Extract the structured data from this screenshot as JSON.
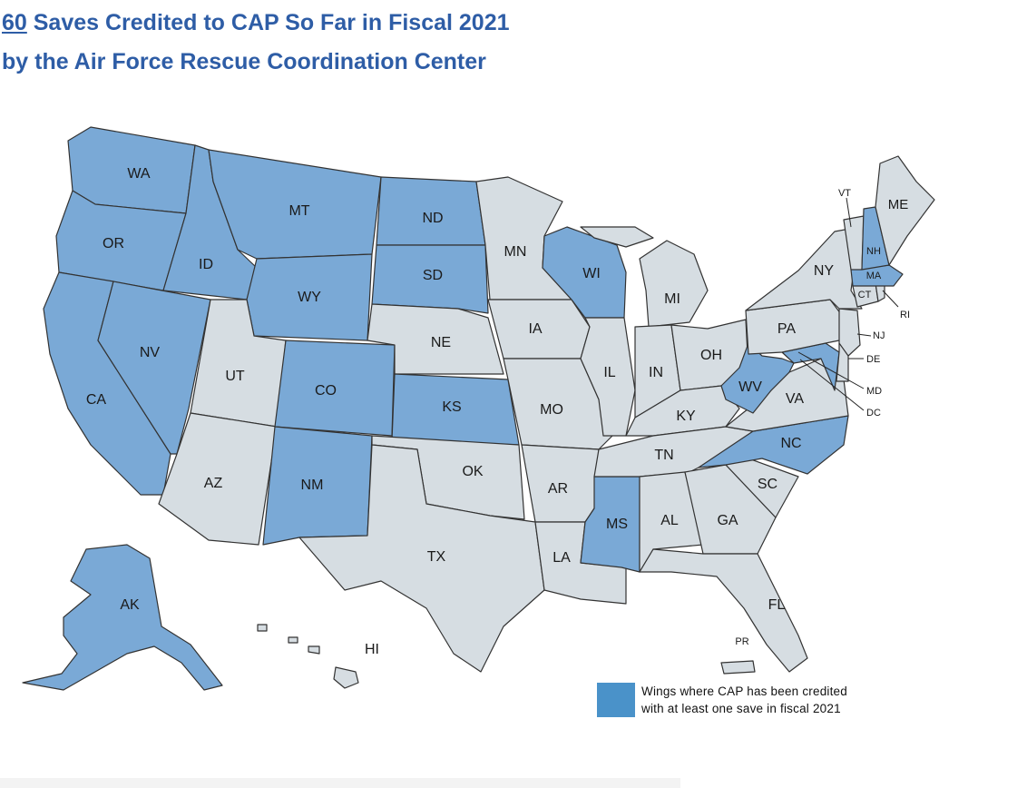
{
  "title": {
    "count": "60",
    "line1_rest": " Saves Credited to CAP So Far in Fiscal 2021",
    "line2": "by the Air Force Rescue Coordination Center"
  },
  "legend": {
    "line1": "Wings where CAP has been credited",
    "line2": "with at least one save in fiscal 2021"
  },
  "colors": {
    "credited": "#7aa9d6",
    "credited_dark": "#4a92c9",
    "other": "#d6dde2",
    "outline": "#333333"
  },
  "states": [
    {
      "abbr": "WA",
      "credited": true
    },
    {
      "abbr": "OR",
      "credited": true
    },
    {
      "abbr": "CA",
      "credited": true
    },
    {
      "abbr": "ID",
      "credited": true
    },
    {
      "abbr": "NV",
      "credited": true
    },
    {
      "abbr": "MT",
      "credited": true
    },
    {
      "abbr": "WY",
      "credited": true
    },
    {
      "abbr": "UT",
      "credited": false
    },
    {
      "abbr": "AZ",
      "credited": false
    },
    {
      "abbr": "CO",
      "credited": true
    },
    {
      "abbr": "NM",
      "credited": true
    },
    {
      "abbr": "ND",
      "credited": true
    },
    {
      "abbr": "SD",
      "credited": true
    },
    {
      "abbr": "NE",
      "credited": false
    },
    {
      "abbr": "KS",
      "credited": true
    },
    {
      "abbr": "OK",
      "credited": false
    },
    {
      "abbr": "TX",
      "credited": false
    },
    {
      "abbr": "MN",
      "credited": false
    },
    {
      "abbr": "IA",
      "credited": false
    },
    {
      "abbr": "MO",
      "credited": false
    },
    {
      "abbr": "AR",
      "credited": false
    },
    {
      "abbr": "LA",
      "credited": false
    },
    {
      "abbr": "WI",
      "credited": true
    },
    {
      "abbr": "IL",
      "credited": false
    },
    {
      "abbr": "MS",
      "credited": true
    },
    {
      "abbr": "MI",
      "credited": false
    },
    {
      "abbr": "IN",
      "credited": false
    },
    {
      "abbr": "OH",
      "credited": false
    },
    {
      "abbr": "KY",
      "credited": false
    },
    {
      "abbr": "TN",
      "credited": false
    },
    {
      "abbr": "AL",
      "credited": false
    },
    {
      "abbr": "GA",
      "credited": false
    },
    {
      "abbr": "FL",
      "credited": false
    },
    {
      "abbr": "SC",
      "credited": false
    },
    {
      "abbr": "NC",
      "credited": true
    },
    {
      "abbr": "VA",
      "credited": false
    },
    {
      "abbr": "WV",
      "credited": true
    },
    {
      "abbr": "MD",
      "credited": true
    },
    {
      "abbr": "DE",
      "credited": false
    },
    {
      "abbr": "DC",
      "credited": false
    },
    {
      "abbr": "PA",
      "credited": false
    },
    {
      "abbr": "NJ",
      "credited": false
    },
    {
      "abbr": "NY",
      "credited": false
    },
    {
      "abbr": "CT",
      "credited": false
    },
    {
      "abbr": "RI",
      "credited": false
    },
    {
      "abbr": "MA",
      "credited": true
    },
    {
      "abbr": "VT",
      "credited": false
    },
    {
      "abbr": "NH",
      "credited": true
    },
    {
      "abbr": "ME",
      "credited": false
    },
    {
      "abbr": "AK",
      "credited": true
    },
    {
      "abbr": "HI",
      "credited": false
    },
    {
      "abbr": "PR",
      "credited": false
    }
  ]
}
